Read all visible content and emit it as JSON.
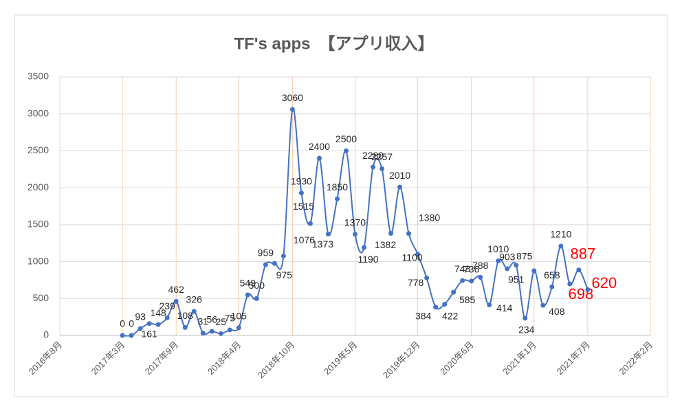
{
  "chart_data": {
    "type": "line",
    "title": "TF's apps　【アプリ収入】",
    "x": [
      "2017-03",
      "2017-04",
      "2017-05",
      "2017-06",
      "2017-07",
      "2017-08",
      "2017-09",
      "2017-10",
      "2017-11",
      "2017-12",
      "2018-01",
      "2018-02",
      "2018-03",
      "2018-04",
      "2018-05",
      "2018-06",
      "2018-07",
      "2018-08",
      "2018-09",
      "2018-10",
      "2018-11",
      "2018-12",
      "2019-01",
      "2019-02",
      "2019-03",
      "2019-04",
      "2019-05",
      "2019-06",
      "2019-07",
      "2019-08",
      "2019-09",
      "2019-10",
      "2019-11",
      "2019-12",
      "2020-01",
      "2020-02",
      "2020-03",
      "2020-04",
      "2020-05",
      "2020-06",
      "2020-07",
      "2020-08",
      "2020-09",
      "2020-10",
      "2020-11",
      "2020-12",
      "2021-01",
      "2021-02",
      "2021-03",
      "2021-04",
      "2021-05",
      "2021-06",
      "2021-07"
    ],
    "series": [
      {
        "name": "アプリ収入",
        "color": "#4472c4",
        "values": [
          0,
          0,
          93,
          161,
          148,
          239,
          462,
          108,
          326,
          31,
          56,
          25,
          75,
          105,
          549,
          500,
          959,
          975,
          1076,
          3060,
          1930,
          1515,
          2400,
          1373,
          1850,
          2500,
          1370,
          1190,
          2280,
          2257,
          1382,
          2010,
          1380,
          1100,
          778,
          384,
          422,
          585,
          743,
          736,
          788,
          414,
          1010,
          903,
          951,
          234,
          875,
          408,
          658,
          1210,
          698,
          887,
          620
        ]
      }
    ],
    "highlight": {
      "indices": [
        50,
        51,
        52
      ],
      "color": "#ff0000"
    },
    "xlim": [
      "2016-08",
      "2022-02"
    ],
    "xticks": [
      {
        "value": "2016-08",
        "label": "2016年8月"
      },
      {
        "value": "2017-03",
        "label": "2017年3月"
      },
      {
        "value": "2017-09",
        "label": "2017年9月"
      },
      {
        "value": "2018-04",
        "label": "2018年4月"
      },
      {
        "value": "2018-10",
        "label": "2018年10月"
      },
      {
        "value": "2019-05",
        "label": "2019年5月"
      },
      {
        "value": "2019-12",
        "label": "2019年12月"
      },
      {
        "value": "2020-06",
        "label": "2020年6月"
      },
      {
        "value": "2021-01",
        "label": "2021年1月"
      },
      {
        "value": "2021-07",
        "label": "2021年7月"
      },
      {
        "value": "2022-02",
        "label": "2022年2月"
      }
    ],
    "ylim": [
      0,
      3500
    ],
    "yticks": [
      0,
      500,
      1000,
      1500,
      2000,
      2500,
      3000,
      3500
    ],
    "grid": true
  }
}
